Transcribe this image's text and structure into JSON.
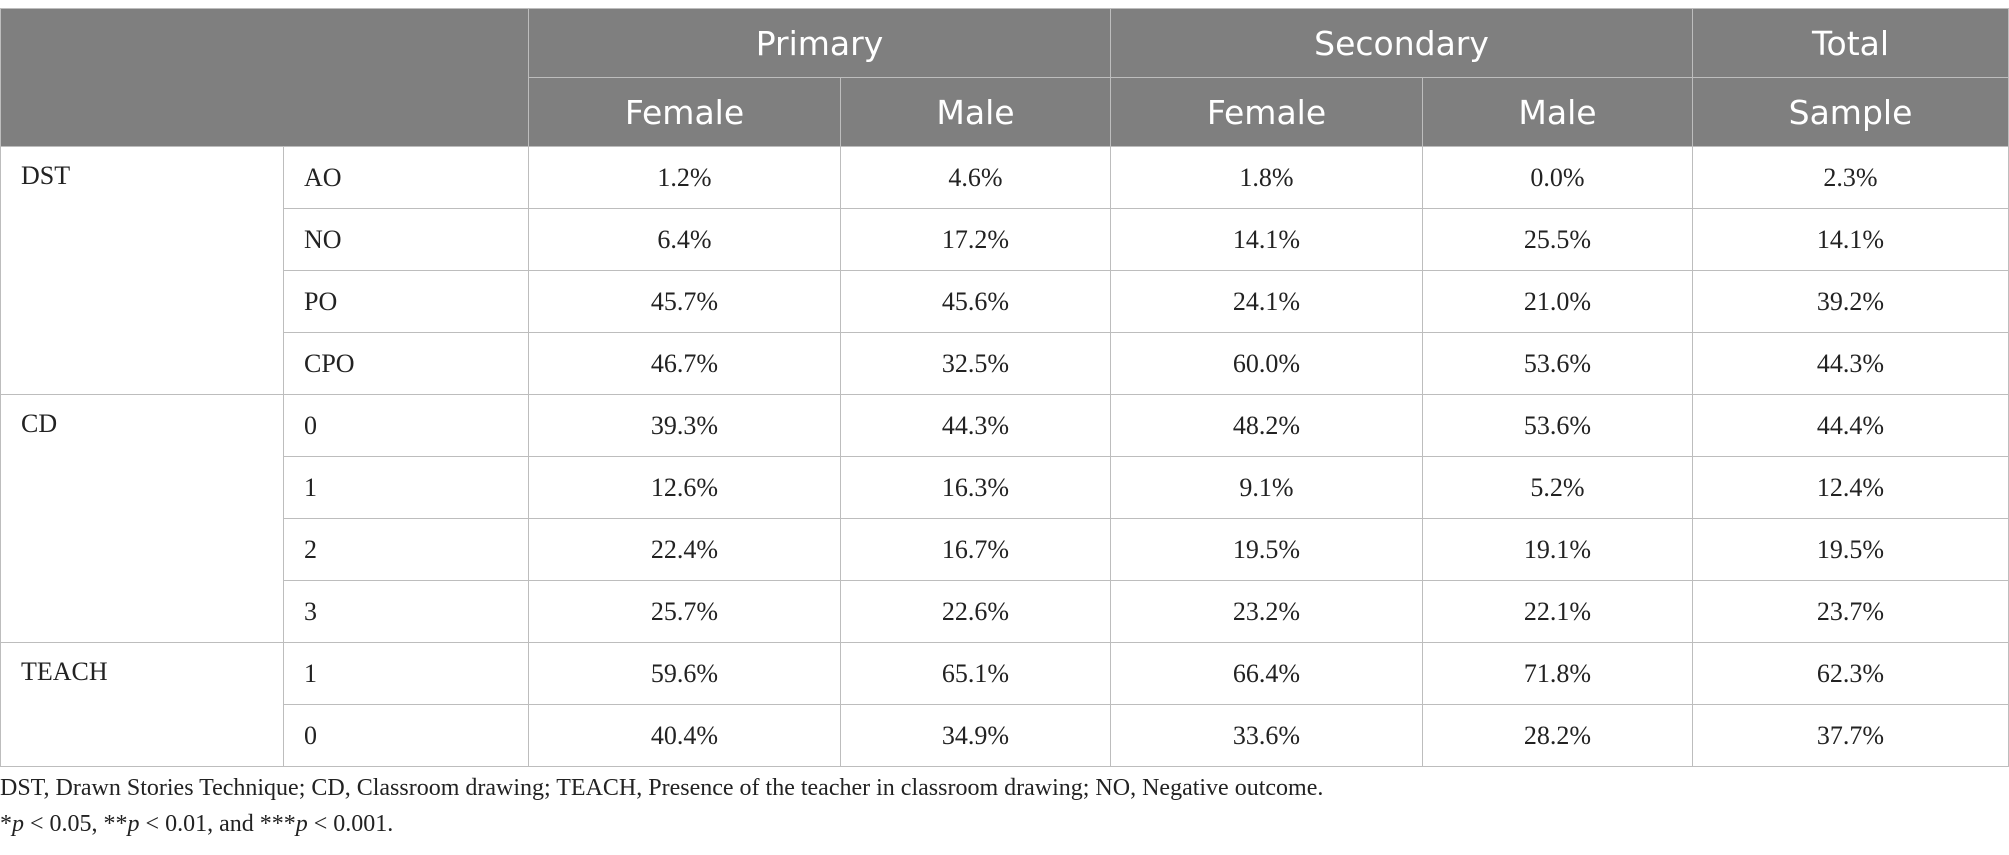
{
  "header": {
    "groups": [
      "Primary",
      "Secondary",
      "Total"
    ],
    "subs": [
      "Female",
      "Male",
      "Female",
      "Male",
      "Sample"
    ]
  },
  "rows": [
    {
      "group": "DST",
      "sub": "AO",
      "values": [
        "1.2%",
        "4.6%",
        "1.8%",
        "0.0%",
        "2.3%"
      ]
    },
    {
      "group": "",
      "sub": "NO",
      "values": [
        "6.4%",
        "17.2%",
        "14.1%",
        "25.5%",
        "14.1%"
      ]
    },
    {
      "group": "",
      "sub": "PO",
      "values": [
        "45.7%",
        "45.6%",
        "24.1%",
        "21.0%",
        "39.2%"
      ]
    },
    {
      "group": "",
      "sub": "CPO",
      "values": [
        "46.7%",
        "32.5%",
        "60.0%",
        "53.6%",
        "44.3%"
      ]
    },
    {
      "group": "CD",
      "sub": "0",
      "values": [
        "39.3%",
        "44.3%",
        "48.2%",
        "53.6%",
        "44.4%"
      ]
    },
    {
      "group": "",
      "sub": "1",
      "values": [
        "12.6%",
        "16.3%",
        "9.1%",
        "5.2%",
        "12.4%"
      ]
    },
    {
      "group": "",
      "sub": "2",
      "values": [
        "22.4%",
        "16.7%",
        "19.5%",
        "19.1%",
        "19.5%"
      ]
    },
    {
      "group": "",
      "sub": "3",
      "values": [
        "25.7%",
        "22.6%",
        "23.2%",
        "22.1%",
        "23.7%"
      ]
    },
    {
      "group": "TEACH",
      "sub": "1",
      "values": [
        "59.6%",
        "65.1%",
        "66.4%",
        "71.8%",
        "62.3%"
      ]
    },
    {
      "group": "",
      "sub": "0",
      "values": [
        "40.4%",
        "34.9%",
        "33.6%",
        "28.2%",
        "37.7%"
      ]
    }
  ],
  "footnotes": {
    "abbreviations": "DST, Drawn Stories Technique; CD, Classroom drawing; TEACH, Presence of the teacher in classroom drawing; NO, Negative outcome.",
    "sig1_mark": "*",
    "sig1_p": "p",
    "sig1_rest": " < 0.05, **",
    "sig2_p": "p",
    "sig2_rest": " < 0.01, and ***",
    "sig3_p": "p",
    "sig3_rest": " < 0.001."
  }
}
